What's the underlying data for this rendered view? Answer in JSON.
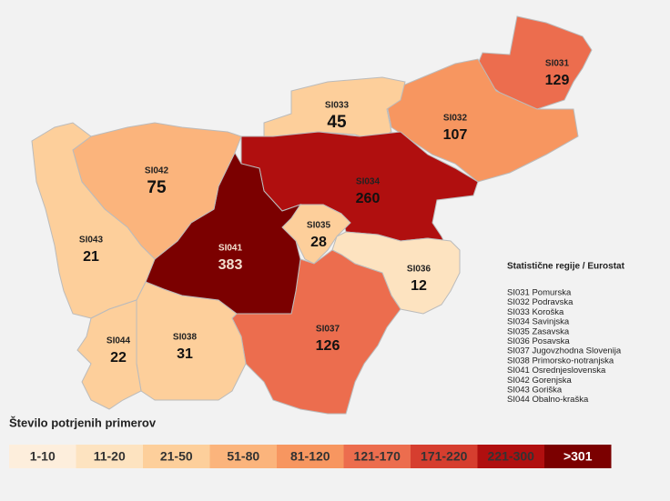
{
  "map": {
    "regions": [
      {
        "code": "SI031",
        "value": 129,
        "color": "#ec6d4e"
      },
      {
        "code": "SI032",
        "value": 107,
        "color": "#f79660"
      },
      {
        "code": "SI033",
        "value": 45,
        "color": "#fdcf9b"
      },
      {
        "code": "SI034",
        "value": 260,
        "color": "#b00f0f"
      },
      {
        "code": "SI035",
        "value": 28,
        "color": "#fdcf9b"
      },
      {
        "code": "SI036",
        "value": 12,
        "color": "#fde3c0"
      },
      {
        "code": "SI037",
        "value": 126,
        "color": "#ec6d4e"
      },
      {
        "code": "SI038",
        "value": 31,
        "color": "#fdcf9b"
      },
      {
        "code": "SI041",
        "value": 383,
        "color": "#7b0000"
      },
      {
        "code": "SI042",
        "value": 75,
        "color": "#fbb47c"
      },
      {
        "code": "SI043",
        "value": 21,
        "color": "#fdcf9b"
      },
      {
        "code": "SI044",
        "value": 22,
        "color": "#fdcf9b"
      }
    ],
    "legend_title": "Število potrjenih primerov",
    "bins": [
      {
        "label": "1-10",
        "color": "#fdeedc"
      },
      {
        "label": "11-20",
        "color": "#fde3c0"
      },
      {
        "label": "21-50",
        "color": "#fdcf9b"
      },
      {
        "label": "51-80",
        "color": "#fbb47c"
      },
      {
        "label": "81-120",
        "color": "#f79660"
      },
      {
        "label": "121-170",
        "color": "#ec6d4e"
      },
      {
        "label": "171-220",
        "color": "#d63e2f"
      },
      {
        "label": "221-300",
        "color": "#b00f0f"
      },
      {
        "label": ">301",
        "color": "#7b0000"
      }
    ],
    "key_title": "Statistične regije / Eurostat",
    "key": [
      "SI031 Pomurska",
      "SI032 Podravska",
      "SI033 Koroška",
      "SI034 Savinjska",
      "SI035 Zasavska",
      "SI036 Posavska",
      "SI037 Jugovzhodna Slovenija",
      "SI038 Primorsko-notranjska",
      "SI041 Osrednjeslovenska",
      "SI042 Gorenjska",
      "SI043 Goriška",
      "SI044 Obalno-kraška"
    ]
  }
}
